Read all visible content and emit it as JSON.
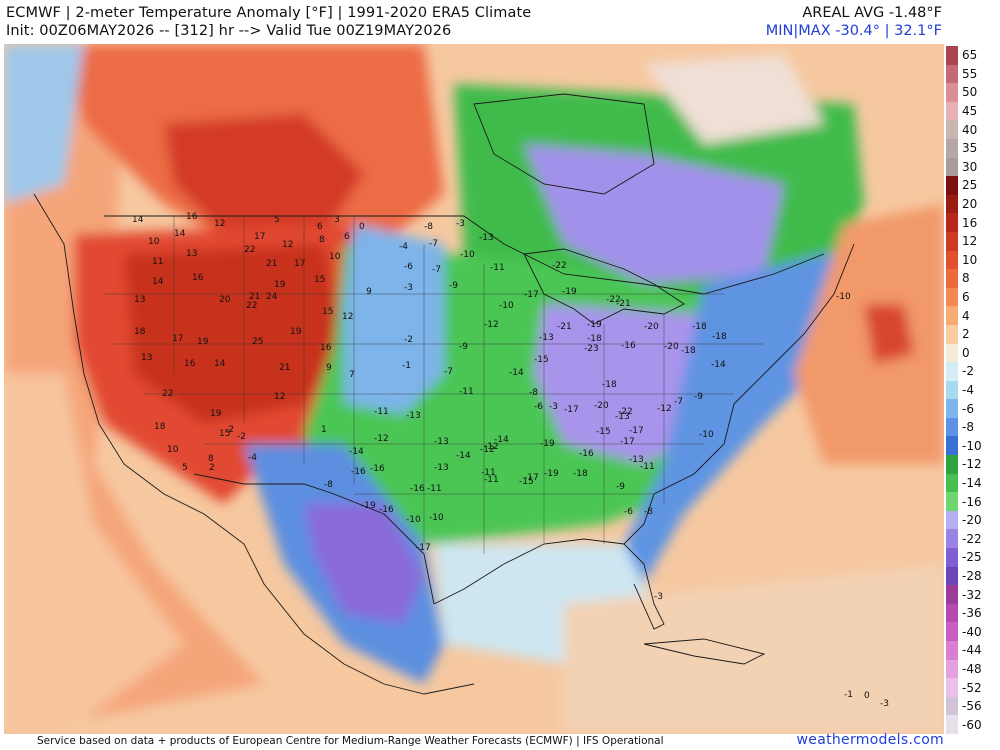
{
  "header": {
    "title_line1": "ECMWF | 2-meter Temperature Anomaly [°F] | 1991-2020 ERA5 Climate",
    "title_line2": "Init: 00Z06MAY2026 -- [312] hr --> Valid Tue 00Z19MAY2026",
    "areal_avg": "AREAL AVG -1.48°F",
    "min_max": "MIN|MAX -30.4° | 32.1°F"
  },
  "footer": {
    "credit": "Service based on data + products of European Centre for Medium-Range Weather Forecasts (ECMWF) | IFS Operational",
    "site": "weathermodels.com"
  },
  "colors": {
    "link_blue": "#1f3fd6",
    "warm": "#e8533a",
    "cool_green": "#3bbf4a",
    "cold_purple": "#9b83e6"
  },
  "colorbar": {
    "labels": [
      "65",
      "55",
      "50",
      "45",
      "40",
      "35",
      "30",
      "25",
      "20",
      "16",
      "12",
      "10",
      "8",
      "6",
      "4",
      "2",
      "0",
      "-2",
      "-4",
      "-6",
      "-8",
      "-10",
      "-12",
      "-14",
      "-16",
      "-20",
      "-22",
      "-25",
      "-28",
      "-32",
      "-36",
      "-40",
      "-44",
      "-48",
      "-52",
      "-56",
      "-60"
    ],
    "colors": [
      "#a8434f",
      "#c46a78",
      "#d98e98",
      "#e6b0b6",
      "#c9b6b3",
      "#b5a8a5",
      "#a89d9a",
      "#7a1010",
      "#9a1d14",
      "#b8261a",
      "#cf3a26",
      "#e2502f",
      "#ee6a3c",
      "#f48a52",
      "#f8ab72",
      "#fbcba2",
      "#f3ecd9",
      "#d4ecf3",
      "#a8d9f1",
      "#7db6ec",
      "#5c92e3",
      "#3a6fd6",
      "#2fa43f",
      "#46c050",
      "#6fd56f",
      "#b6b0f2",
      "#9b83e6",
      "#7f5fd4",
      "#6a47b8",
      "#9a3d9a",
      "#b54aae",
      "#c85ec2",
      "#d87fd2",
      "#e4a3e0",
      "#ecc0ea",
      "#d0c4d6",
      "#e6e0ea"
    ]
  },
  "map": {
    "labels": [
      {
        "v": "14"
      },
      {
        "v": "16"
      },
      {
        "v": "12"
      },
      {
        "v": "5"
      },
      {
        "v": "6"
      },
      {
        "v": "3"
      },
      {
        "v": "0"
      },
      {
        "v": "-8"
      },
      {
        "v": "-3"
      },
      {
        "v": "10"
      },
      {
        "v": "14"
      },
      {
        "v": "17"
      },
      {
        "v": "12"
      },
      {
        "v": "8"
      },
      {
        "v": "6"
      },
      {
        "v": "-4"
      },
      {
        "v": "-7"
      },
      {
        "v": "-13"
      },
      {
        "v": "11"
      },
      {
        "v": "13"
      },
      {
        "v": "22"
      },
      {
        "v": "21"
      },
      {
        "v": "17"
      },
      {
        "v": "10"
      },
      {
        "v": "-6"
      },
      {
        "v": "-7"
      },
      {
        "v": "-10"
      },
      {
        "v": "-11"
      },
      {
        "v": "14"
      },
      {
        "v": "16"
      },
      {
        "v": "19"
      },
      {
        "v": "24"
      },
      {
        "v": "15"
      },
      {
        "v": "9"
      },
      {
        "v": "-3"
      },
      {
        "v": "-9"
      },
      {
        "v": "-17"
      },
      {
        "v": "-22"
      },
      {
        "v": "13"
      },
      {
        "v": "20"
      },
      {
        "v": "21"
      },
      {
        "v": "22"
      },
      {
        "v": "15"
      },
      {
        "v": "12"
      },
      {
        "v": "-10"
      },
      {
        "v": "-12"
      },
      {
        "v": "-20"
      },
      {
        "v": "-19"
      },
      {
        "v": "18"
      },
      {
        "v": "17"
      },
      {
        "v": "19"
      },
      {
        "v": "25"
      },
      {
        "v": "19"
      },
      {
        "v": "16"
      },
      {
        "v": "-2"
      },
      {
        "v": "-9"
      },
      {
        "v": "-13"
      },
      {
        "v": "-18"
      },
      {
        "v": "13"
      },
      {
        "v": "16"
      },
      {
        "v": "14"
      },
      {
        "v": "21"
      },
      {
        "v": "9"
      },
      {
        "v": "7"
      },
      {
        "v": "-1"
      },
      {
        "v": "-7"
      },
      {
        "v": "-14"
      },
      {
        "v": "-15"
      },
      {
        "v": "22"
      },
      {
        "v": "19"
      },
      {
        "v": "12"
      },
      {
        "v": "-2"
      },
      {
        "v": "-11"
      },
      {
        "v": "-13"
      },
      {
        "v": "-11"
      },
      {
        "v": "-17"
      },
      {
        "v": "-20"
      },
      {
        "v": "18"
      },
      {
        "v": "15"
      },
      {
        "v": "-2"
      },
      {
        "v": "1"
      },
      {
        "v": "-12"
      },
      {
        "v": "-13"
      },
      {
        "v": "-12"
      },
      {
        "v": "-14"
      },
      {
        "v": "-19"
      },
      {
        "v": "-22"
      },
      {
        "v": "10"
      },
      {
        "v": "8"
      },
      {
        "v": "-4"
      },
      {
        "v": "-14"
      },
      {
        "v": "-16"
      },
      {
        "v": "-13"
      },
      {
        "v": "-14"
      },
      {
        "v": "-19"
      },
      {
        "v": "-18"
      },
      {
        "v": "-17"
      },
      {
        "v": "5"
      },
      {
        "v": "2"
      },
      {
        "v": "-8"
      },
      {
        "v": "-16"
      },
      {
        "v": "-16"
      },
      {
        "v": "-11"
      },
      {
        "v": "-17"
      },
      {
        "v": "-16"
      },
      {
        "v": "-13"
      },
      {
        "v": "-11"
      },
      {
        "v": "-19"
      },
      {
        "v": "-16"
      },
      {
        "v": "-10"
      },
      {
        "v": "-11"
      },
      {
        "v": "-15"
      },
      {
        "v": "-9"
      },
      {
        "v": "-6"
      },
      {
        "v": "-8"
      },
      {
        "v": "-17"
      },
      {
        "v": "-10"
      },
      {
        "v": "-11"
      },
      {
        "v": "-12"
      },
      {
        "v": "-18"
      },
      {
        "v": "-23"
      },
      {
        "v": "-20"
      },
      {
        "v": "-18"
      },
      {
        "v": "-10"
      },
      {
        "v": "-21"
      },
      {
        "v": "-19"
      },
      {
        "v": "-22"
      },
      {
        "v": "-21"
      },
      {
        "v": "-16"
      },
      {
        "v": "-18"
      },
      {
        "v": "-14"
      },
      {
        "v": "-9"
      },
      {
        "v": "-7"
      },
      {
        "v": "-6"
      },
      {
        "v": "-3"
      },
      {
        "v": "-8"
      },
      {
        "v": "-10"
      },
      {
        "v": "-18"
      },
      {
        "v": "-15"
      },
      {
        "v": "-17"
      },
      {
        "v": "-12"
      },
      {
        "v": "-13"
      },
      {
        "v": "-3"
      },
      {
        "v": "-1"
      },
      {
        "v": "0"
      },
      {
        "v": "-3"
      }
    ]
  }
}
